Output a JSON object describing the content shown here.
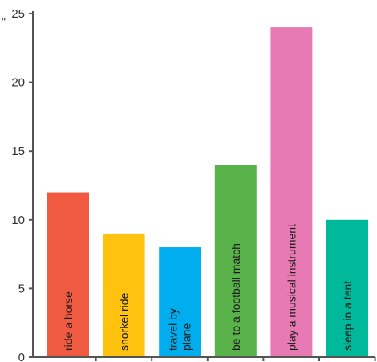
{
  "chart_data": {
    "type": "bar",
    "title": "",
    "xlabel": "",
    "ylabel": "",
    "ylim": [
      0,
      25
    ],
    "yticks": [
      0,
      5,
      10,
      15,
      20,
      25
    ],
    "grid": false,
    "orientation": "vertical",
    "label_placement": "inside-bar-rotated",
    "categories": [
      "ride a horse",
      "snorkel ride",
      "travel by plane",
      "be to a football match",
      "play a musical instrument",
      "sleep in a tent"
    ],
    "label_lines": [
      [
        "ride a horse"
      ],
      [
        "snorkel ride"
      ],
      [
        "travel by",
        "plane"
      ],
      [
        "be to a football match"
      ],
      [
        "play a musical instrument"
      ],
      [
        "sleep in a tent"
      ]
    ],
    "values": [
      12,
      9,
      8,
      14,
      24,
      10
    ],
    "colors": [
      "#ef5a40",
      "#ffc20e",
      "#00aeef",
      "#5ab24a",
      "#e87ab3",
      "#00b89a"
    ]
  },
  "stray_mark": "\""
}
